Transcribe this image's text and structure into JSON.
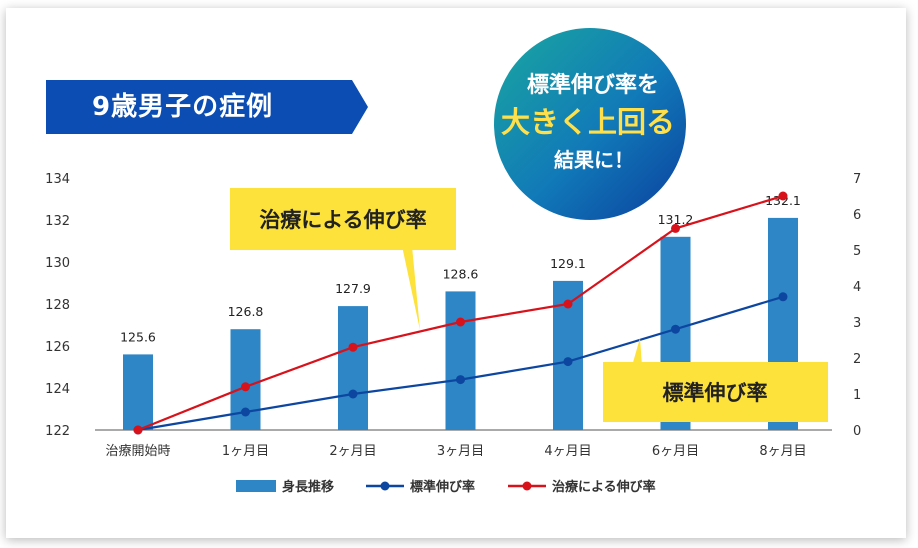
{
  "banner": {
    "title": "9歳男子の症例"
  },
  "badge": {
    "line1": "標準伸び率を",
    "line2": "大きく上回る",
    "line3": "結果に！"
  },
  "callouts": {
    "treatment": "治療による伸び率",
    "standard": "標準伸び率"
  },
  "colors": {
    "bar": "#2e86c6",
    "standard_line": "#0d46a0",
    "treatment_line": "#d8121b",
    "callout_bg": "#fde23c",
    "banner": "#0b4db2",
    "badge_accent": "#ffe04a"
  },
  "chart_data": {
    "type": "bar",
    "categories": [
      "治療開始時",
      "1ヶ月目",
      "2ヶ月目",
      "3ヶ月目",
      "4ヶ月目",
      "6ヶ月目",
      "8ヶ月目"
    ],
    "y_left_ticks": [
      "122",
      "124",
      "126",
      "128",
      "130",
      "132",
      "134"
    ],
    "y_right_ticks": [
      "0",
      "1",
      "2",
      "3",
      "4",
      "5",
      "6",
      "7"
    ],
    "ylim_left": [
      122,
      134
    ],
    "ylim_right": [
      0,
      7
    ],
    "series": [
      {
        "name": "身長推移",
        "type": "bar",
        "axis": "left",
        "values": [
          125.6,
          126.8,
          127.9,
          128.6,
          129.1,
          131.2,
          132.1
        ],
        "labels": [
          "125.6",
          "126.8",
          "127.9",
          "128.6",
          "129.1",
          "131.2",
          "132.1"
        ]
      },
      {
        "name": "標準伸び率",
        "type": "line",
        "axis": "right",
        "values": [
          0,
          0.5,
          1.0,
          1.4,
          1.9,
          2.8,
          3.7
        ]
      },
      {
        "name": "治療による伸び率",
        "type": "line",
        "axis": "right",
        "values": [
          0,
          1.2,
          2.3,
          3.0,
          3.5,
          5.6,
          6.5
        ]
      }
    ],
    "legend_position": "bottom",
    "grid": false
  }
}
